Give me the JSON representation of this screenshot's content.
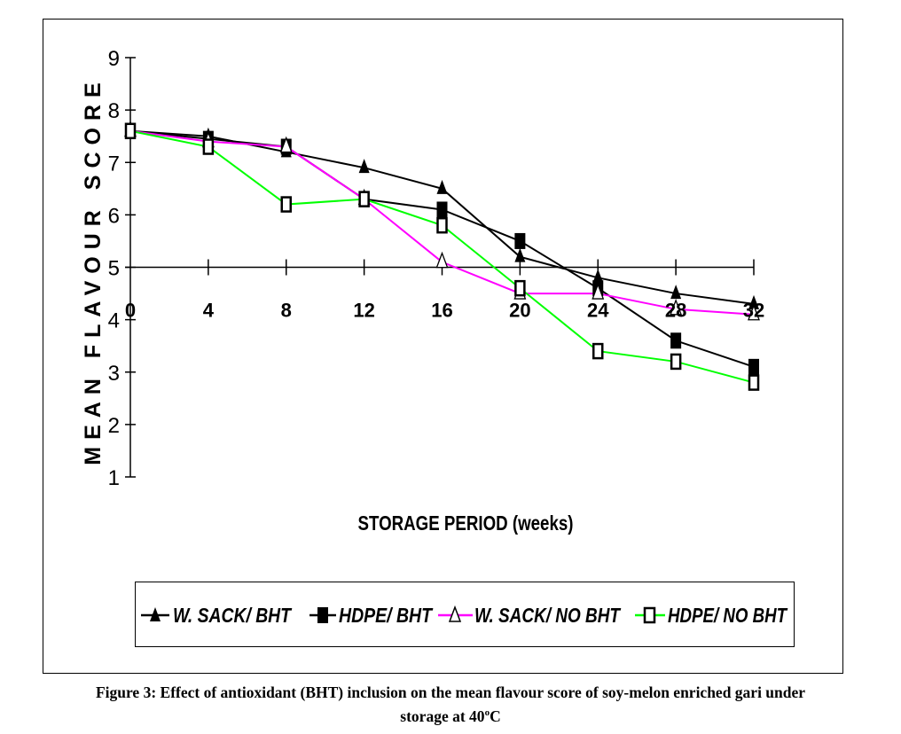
{
  "chart_data": {
    "type": "line",
    "title": "",
    "xlabel": "STORAGE PERIOD (weeks)",
    "ylabel": "MEAN FLAVOUR SCORE",
    "x": [
      0,
      4,
      8,
      12,
      16,
      20,
      24,
      28,
      32
    ],
    "x_tick_labels": [
      "0",
      "4",
      "8",
      "12",
      "16",
      "20",
      "24",
      "28",
      "32"
    ],
    "y_ticks": [
      1,
      2,
      3,
      4,
      5,
      6,
      7,
      8,
      9
    ],
    "y_tick_labels": [
      "1",
      "2",
      "3",
      "4",
      "5",
      "6",
      "7",
      "8",
      "9"
    ],
    "ylim": [
      1,
      9
    ],
    "x_axis_crosses_at_y": 5,
    "grid": false,
    "legend_position": "bottom",
    "series": [
      {
        "name": "W. SACK/ BHT",
        "color": "#000000",
        "marker": "filled-triangle",
        "values": [
          7.6,
          7.5,
          7.2,
          6.9,
          6.5,
          5.2,
          4.8,
          4.5,
          4.3
        ]
      },
      {
        "name": "HDPE/ BHT",
        "color": "#000000",
        "marker": "filled-square",
        "values": [
          7.6,
          7.45,
          7.3,
          6.3,
          6.1,
          5.5,
          4.6,
          3.6,
          3.1
        ]
      },
      {
        "name": "W. SACK/ NO BHT",
        "color": "#ff00ff",
        "marker": "hollow-triangle",
        "values": [
          7.6,
          7.4,
          7.3,
          6.3,
          5.1,
          4.5,
          4.5,
          4.2,
          4.1
        ]
      },
      {
        "name": "HDPE/ NO BHT",
        "color": "#00ff00",
        "marker": "hollow-square",
        "values": [
          7.6,
          7.3,
          6.2,
          6.3,
          5.8,
          4.6,
          3.4,
          3.2,
          2.8
        ]
      }
    ]
  },
  "legend": {
    "items": [
      {
        "label": "W. SACK/ BHT"
      },
      {
        "label": "HDPE/ BHT"
      },
      {
        "label": "W. SACK/ NO BHT"
      },
      {
        "label": "HDPE/ NO BHT"
      }
    ]
  },
  "caption": {
    "line1": "Figure 3: Effect of antioxidant (BHT) inclusion on the mean flavour score of soy-melon enriched  gari under",
    "line2_prefix": "storage at 40",
    "line2_sup": "o",
    "line2_suffix": "C"
  }
}
